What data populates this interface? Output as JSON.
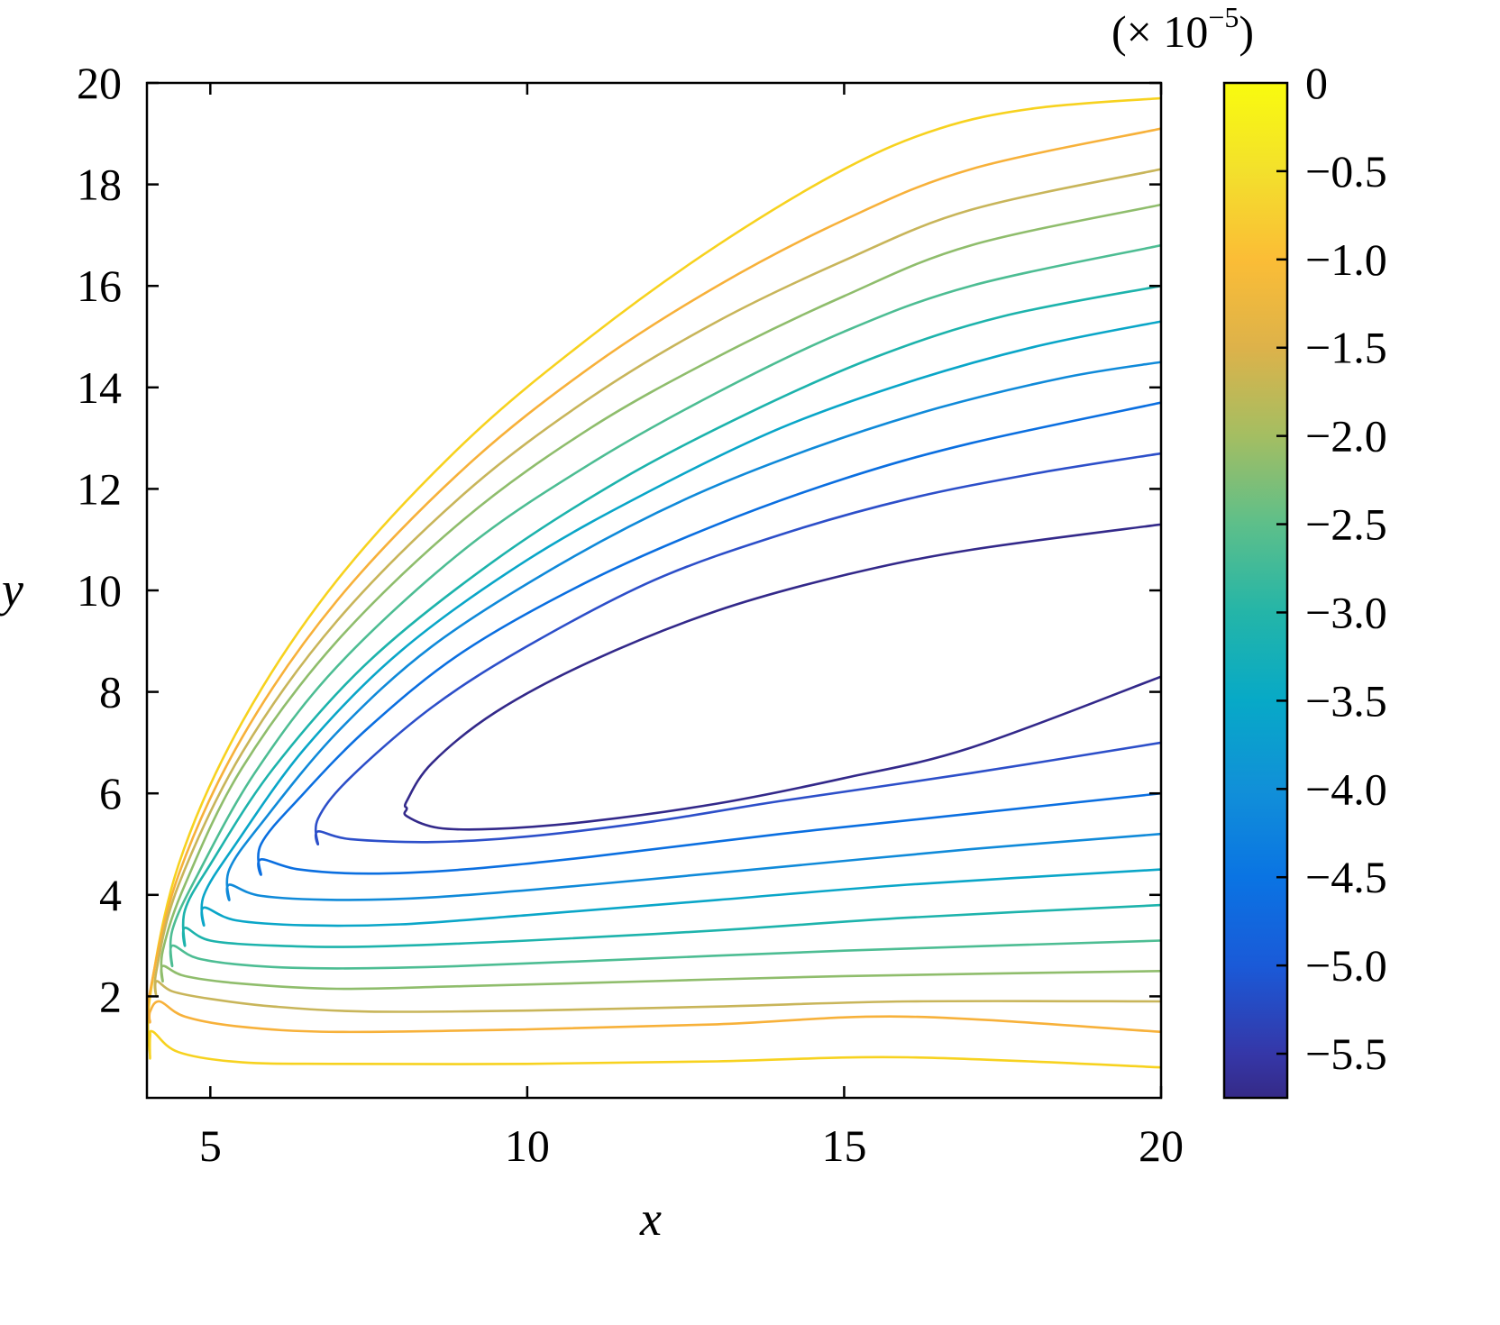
{
  "chart_data": {
    "type": "contour",
    "title": "",
    "xlabel": "x",
    "ylabel": "y",
    "xlim": [
      4,
      20
    ],
    "ylim": [
      0,
      20
    ],
    "xticks": [
      5,
      10,
      15,
      20
    ],
    "yticks": [
      2,
      4,
      6,
      8,
      10,
      12,
      14,
      16,
      18,
      20
    ],
    "grid": false,
    "colorbar": {
      "label": "(× 10⁻⁵)",
      "multiplier_base": "(× 10",
      "multiplier_exp": "−5",
      "multiplier_close": ")",
      "range": [
        -5.75,
        0
      ],
      "ticks": [
        0,
        -0.5,
        -1.0,
        -1.5,
        -2.0,
        -2.5,
        -3.0,
        -3.5,
        -4.0,
        -4.5,
        -5.0,
        -5.5
      ],
      "tick_labels": [
        "0",
        "−0.5",
        "−1.0",
        "−1.5",
        "−2.0",
        "−2.5",
        "−3.0",
        "−3.5",
        "−4.0",
        "−4.5",
        "−5.0",
        "−5.5"
      ],
      "colormap": "parula",
      "color_stops": [
        {
          "v": 0,
          "color": "#f9fb0e"
        },
        {
          "v": -0.5,
          "color": "#f3e02c"
        },
        {
          "v": -1.0,
          "color": "#fbbd36"
        },
        {
          "v": -1.5,
          "color": "#ddb24a"
        },
        {
          "v": -2.0,
          "color": "#a4be62"
        },
        {
          "v": -2.5,
          "color": "#5dbf8a"
        },
        {
          "v": -3.0,
          "color": "#24b5a8"
        },
        {
          "v": -3.5,
          "color": "#07a9c7"
        },
        {
          "v": -4.0,
          "color": "#1190d8"
        },
        {
          "v": -4.5,
          "color": "#0a74e3"
        },
        {
          "v": -5.0,
          "color": "#1a5ad8"
        },
        {
          "v": -5.5,
          "color": "#3537a8"
        },
        {
          "v": -5.75,
          "color": "#352a87"
        }
      ]
    },
    "series": [
      {
        "name": "level -0.5",
        "level": -0.5,
        "color": "#f7d21f",
        "vertex": [
          4.05,
          0.8
        ],
        "upper_at_x20": 19.7,
        "lower_at_x20": 0.6,
        "upper_pts": [
          [
            4.05,
            2.0
          ],
          [
            4.5,
            4.6
          ],
          [
            5.5,
            7.4
          ],
          [
            7,
            10.2
          ],
          [
            9,
            12.9
          ],
          [
            11,
            15.0
          ],
          [
            13,
            16.8
          ],
          [
            15,
            18.3
          ],
          [
            16.5,
            19.1
          ],
          [
            18,
            19.5
          ],
          [
            20,
            19.7
          ]
        ],
        "lower_pts": [
          [
            4.05,
            1.2
          ],
          [
            4.1,
            1.3
          ],
          [
            4.5,
            0.9
          ],
          [
            5.5,
            0.7
          ],
          [
            7,
            0.67
          ],
          [
            10,
            0.67
          ],
          [
            13,
            0.72
          ],
          [
            16,
            0.8
          ],
          [
            20,
            0.6
          ]
        ]
      },
      {
        "name": "level -1.0",
        "level": -1.0,
        "color": "#f7b13a",
        "vertex": [
          4.05,
          1.5
        ],
        "upper_at_x20": 19.1,
        "lower_at_x20": 1.3,
        "upper_pts": [
          [
            4.05,
            2.1
          ],
          [
            4.5,
            4.4
          ],
          [
            5.5,
            7.1
          ],
          [
            7,
            9.8
          ],
          [
            9,
            12.4
          ],
          [
            11,
            14.4
          ],
          [
            13,
            16.0
          ],
          [
            15,
            17.3
          ],
          [
            17,
            18.3
          ],
          [
            20,
            19.1
          ]
        ],
        "lower_pts": [
          [
            4.05,
            1.7
          ],
          [
            4.2,
            1.9
          ],
          [
            4.6,
            1.6
          ],
          [
            5.5,
            1.4
          ],
          [
            7,
            1.3
          ],
          [
            10,
            1.35
          ],
          [
            13,
            1.45
          ],
          [
            16,
            1.6
          ],
          [
            20,
            1.3
          ]
        ]
      },
      {
        "name": "level -1.5",
        "level": -1.5,
        "color": "#c8b55a",
        "vertex": [
          4.15,
          2.0
        ],
        "upper_at_x20": 18.3,
        "lower_at_x20": 1.9,
        "upper_pts": [
          [
            4.15,
            2.5
          ],
          [
            4.5,
            4.2
          ],
          [
            5.5,
            6.8
          ],
          [
            7,
            9.4
          ],
          [
            9,
            11.9
          ],
          [
            11,
            13.8
          ],
          [
            13,
            15.3
          ],
          [
            15,
            16.5
          ],
          [
            17,
            17.5
          ],
          [
            20,
            18.3
          ]
        ],
        "lower_pts": [
          [
            4.15,
            2.3
          ],
          [
            4.4,
            2.1
          ],
          [
            5,
            1.95
          ],
          [
            6,
            1.8
          ],
          [
            7.5,
            1.7
          ],
          [
            10,
            1.72
          ],
          [
            13,
            1.8
          ],
          [
            16,
            1.9
          ],
          [
            20,
            1.9
          ]
        ]
      },
      {
        "name": "level -2.0",
        "level": -2.0,
        "color": "#8fbd6c",
        "vertex": [
          4.25,
          2.3
        ],
        "upper_at_x20": 17.6,
        "lower_at_x20": 2.5,
        "upper_pts": [
          [
            4.25,
            2.9
          ],
          [
            4.6,
            4.2
          ],
          [
            5.5,
            6.5
          ],
          [
            7,
            9.0
          ],
          [
            9,
            11.4
          ],
          [
            11,
            13.2
          ],
          [
            13,
            14.6
          ],
          [
            15,
            15.8
          ],
          [
            17,
            16.8
          ],
          [
            20,
            17.6
          ]
        ],
        "lower_pts": [
          [
            4.25,
            2.6
          ],
          [
            4.6,
            2.4
          ],
          [
            5.5,
            2.25
          ],
          [
            7,
            2.15
          ],
          [
            9,
            2.2
          ],
          [
            12,
            2.3
          ],
          [
            15,
            2.4
          ],
          [
            20,
            2.5
          ]
        ]
      },
      {
        "name": "level -2.5",
        "level": -2.5,
        "color": "#4dbd93",
        "vertex": [
          4.4,
          2.6
        ],
        "upper_at_x20": 16.8,
        "lower_at_x20": 3.1,
        "upper_pts": [
          [
            4.4,
            3.3
          ],
          [
            4.8,
            4.4
          ],
          [
            5.7,
            6.4
          ],
          [
            7,
            8.5
          ],
          [
            9,
            10.8
          ],
          [
            11,
            12.5
          ],
          [
            13,
            13.9
          ],
          [
            15,
            15.1
          ],
          [
            17,
            16.0
          ],
          [
            20,
            16.8
          ]
        ],
        "lower_pts": [
          [
            4.4,
            3.0
          ],
          [
            4.8,
            2.75
          ],
          [
            5.7,
            2.6
          ],
          [
            7,
            2.55
          ],
          [
            9,
            2.6
          ],
          [
            12,
            2.75
          ],
          [
            15,
            2.9
          ],
          [
            20,
            3.1
          ]
        ]
      },
      {
        "name": "level -3.0",
        "level": -3.0,
        "color": "#1db3ac",
        "vertex": [
          4.6,
          3.0
        ],
        "upper_at_x20": 16.0,
        "lower_at_x20": 3.8,
        "upper_pts": [
          [
            4.6,
            3.7
          ],
          [
            5,
            4.6
          ],
          [
            6,
            6.5
          ],
          [
            7.5,
            8.6
          ],
          [
            9.5,
            10.6
          ],
          [
            11.5,
            12.2
          ],
          [
            13.5,
            13.5
          ],
          [
            15.5,
            14.6
          ],
          [
            17.5,
            15.4
          ],
          [
            20,
            16.0
          ]
        ],
        "lower_pts": [
          [
            4.6,
            3.35
          ],
          [
            5,
            3.1
          ],
          [
            6,
            3.0
          ],
          [
            7.5,
            2.98
          ],
          [
            10,
            3.1
          ],
          [
            13,
            3.3
          ],
          [
            16,
            3.55
          ],
          [
            20,
            3.8
          ]
        ]
      },
      {
        "name": "level -3.5",
        "level": -3.5,
        "color": "#0aa6c8",
        "vertex": [
          4.9,
          3.4
        ],
        "upper_at_x20": 15.3,
        "lower_at_x20": 4.5,
        "upper_pts": [
          [
            4.9,
            4.0
          ],
          [
            5.4,
            5.0
          ],
          [
            6.5,
            6.9
          ],
          [
            8,
            8.8
          ],
          [
            10,
            10.6
          ],
          [
            12,
            12.0
          ],
          [
            14,
            13.2
          ],
          [
            16,
            14.1
          ],
          [
            18,
            14.8
          ],
          [
            20,
            15.3
          ]
        ],
        "lower_pts": [
          [
            4.9,
            3.75
          ],
          [
            5.4,
            3.5
          ],
          [
            6.5,
            3.4
          ],
          [
            8,
            3.42
          ],
          [
            10,
            3.6
          ],
          [
            13,
            3.9
          ],
          [
            16,
            4.2
          ],
          [
            20,
            4.5
          ]
        ]
      },
      {
        "name": "level -4.0",
        "level": -4.0,
        "color": "#108ad9",
        "vertex": [
          5.3,
          3.9
        ],
        "upper_at_x20": 14.5,
        "lower_at_x20": 5.2,
        "upper_pts": [
          [
            5.3,
            4.5
          ],
          [
            5.8,
            5.4
          ],
          [
            7,
            7.2
          ],
          [
            8.5,
            8.9
          ],
          [
            10.5,
            10.5
          ],
          [
            12.5,
            11.8
          ],
          [
            14.5,
            12.8
          ],
          [
            16.5,
            13.6
          ],
          [
            18.5,
            14.2
          ],
          [
            20,
            14.5
          ]
        ],
        "lower_pts": [
          [
            5.3,
            4.2
          ],
          [
            5.8,
            3.98
          ],
          [
            7,
            3.9
          ],
          [
            8.5,
            3.95
          ],
          [
            11,
            4.2
          ],
          [
            14,
            4.55
          ],
          [
            17,
            4.9
          ],
          [
            20,
            5.2
          ]
        ]
      },
      {
        "name": "level -4.5",
        "level": -4.5,
        "color": "#0b6fe0",
        "vertex": [
          5.8,
          4.4
        ],
        "upper_at_x20": 13.7,
        "lower_at_x20": 6.0,
        "upper_pts": [
          [
            5.8,
            5.0
          ],
          [
            6.4,
            5.9
          ],
          [
            7.5,
            7.3
          ],
          [
            9,
            8.8
          ],
          [
            11,
            10.2
          ],
          [
            13,
            11.3
          ],
          [
            15,
            12.2
          ],
          [
            17,
            12.9
          ],
          [
            20,
            13.7
          ]
        ],
        "lower_pts": [
          [
            5.8,
            4.7
          ],
          [
            6.4,
            4.5
          ],
          [
            7.5,
            4.42
          ],
          [
            9,
            4.5
          ],
          [
            11,
            4.75
          ],
          [
            14,
            5.2
          ],
          [
            17,
            5.6
          ],
          [
            20,
            6.0
          ]
        ]
      },
      {
        "name": "level -5.0",
        "level": -5.0,
        "color": "#2d4fc9",
        "vertex": [
          6.7,
          5.0
        ],
        "upper_at_x20": 12.7,
        "lower_at_x20": 7.0,
        "upper_pts": [
          [
            6.7,
            5.5
          ],
          [
            7.2,
            6.3
          ],
          [
            8.5,
            7.7
          ],
          [
            10,
            8.9
          ],
          [
            12,
            10.2
          ],
          [
            14,
            11.1
          ],
          [
            16,
            11.8
          ],
          [
            18,
            12.3
          ],
          [
            20,
            12.7
          ]
        ],
        "lower_pts": [
          [
            6.7,
            5.25
          ],
          [
            7.2,
            5.1
          ],
          [
            8.5,
            5.04
          ],
          [
            10,
            5.15
          ],
          [
            12,
            5.45
          ],
          [
            14,
            5.85
          ],
          [
            17,
            6.4
          ],
          [
            20,
            7.0
          ]
        ]
      },
      {
        "name": "level -5.5",
        "level": -5.5,
        "color": "#33298a",
        "vertex": [
          8.1,
          5.7
        ],
        "upper_at_x20": 11.3,
        "lower_at_x20": 8.3,
        "upper_pts": [
          [
            8.1,
            5.85
          ],
          [
            8.5,
            6.6
          ],
          [
            9.5,
            7.6
          ],
          [
            11,
            8.6
          ],
          [
            13,
            9.6
          ],
          [
            15,
            10.3
          ],
          [
            17,
            10.8
          ],
          [
            20,
            11.3
          ]
        ],
        "lower_pts": [
          [
            8.1,
            5.55
          ],
          [
            8.6,
            5.32
          ],
          [
            9.5,
            5.3
          ],
          [
            11,
            5.45
          ],
          [
            13,
            5.8
          ],
          [
            15,
            6.3
          ],
          [
            17,
            6.9
          ],
          [
            20,
            8.3
          ]
        ]
      }
    ]
  }
}
